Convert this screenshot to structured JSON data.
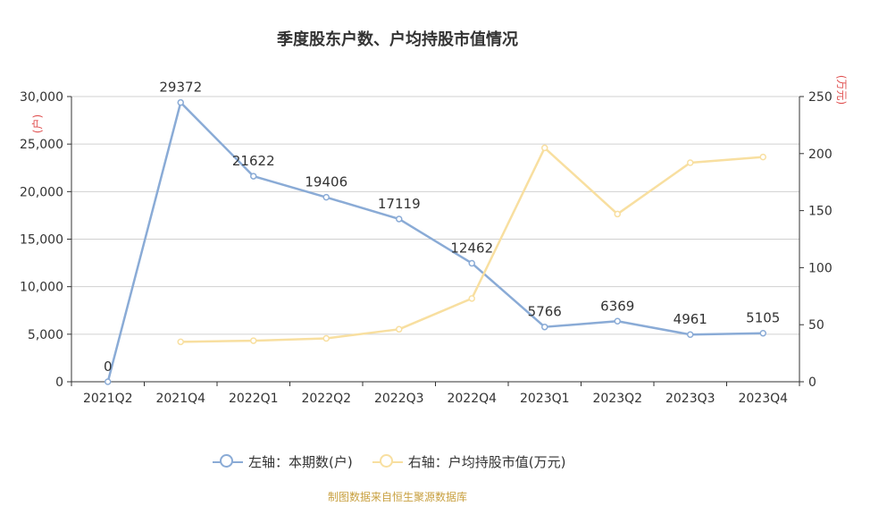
{
  "chart_data": {
    "type": "line",
    "title": "季度股东户数、户均持股市值情况",
    "categories": [
      "2021Q2",
      "2021Q4",
      "2022Q1",
      "2022Q2",
      "2022Q3",
      "2022Q4",
      "2023Q1",
      "2023Q2",
      "2023Q3",
      "2023Q4"
    ],
    "left_axis": {
      "unit": "(户)",
      "ylim": [
        0,
        30000
      ],
      "ticks": [
        "0",
        "5,000",
        "10,000",
        "15,000",
        "20,000",
        "25,000",
        "30,000"
      ]
    },
    "right_axis": {
      "unit": "(万元)",
      "ylim": [
        0,
        250
      ],
      "ticks": [
        "0",
        "50",
        "100",
        "150",
        "200",
        "250"
      ]
    },
    "series": [
      {
        "name": "左轴：本期数(户)",
        "axis": "left",
        "color": "#8aabd6",
        "values": [
          0,
          29372,
          21622,
          19406,
          17119,
          12462,
          5766,
          6369,
          4961,
          5105
        ],
        "labels": [
          "0",
          "29372",
          "21622",
          "19406",
          "17119",
          "12462",
          "5766",
          "6369",
          "4961",
          "5105"
        ]
      },
      {
        "name": "右轴：户均持股市值(万元)",
        "axis": "right",
        "color": "#f8dfa0",
        "values": [
          null,
          35,
          36,
          38,
          46,
          73,
          205,
          147,
          192,
          197
        ]
      }
    ],
    "grid": true,
    "legend_position": "bottom"
  },
  "source": "制图数据来自恒生聚源数据库"
}
